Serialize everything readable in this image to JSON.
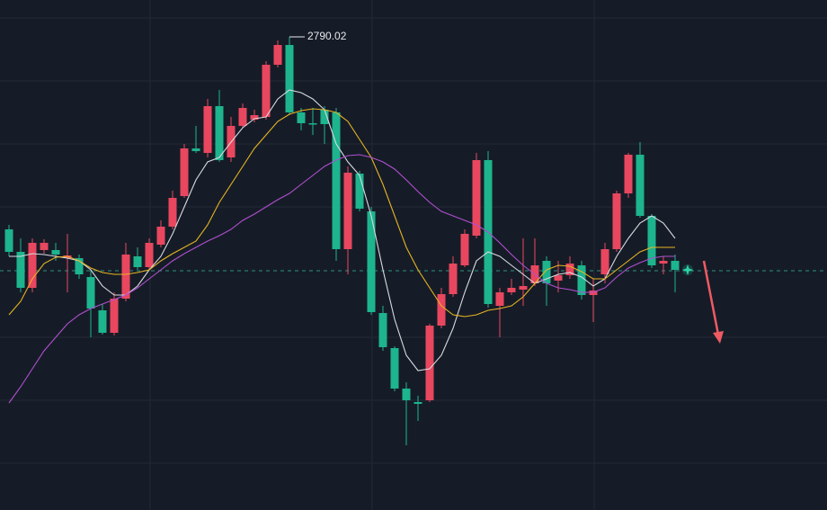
{
  "chart_data": {
    "type": "candlestick",
    "open": [
      2576,
      2551,
      2511,
      2553,
      2553,
      2544,
      2544,
      2523,
      2486,
      2461,
      2499,
      2546,
      2534,
      2559,
      2579,
      2613,
      2666,
      2661,
      2713,
      2656,
      2691,
      2698,
      2701,
      2759,
      2781,
      2706,
      2694,
      2709,
      2706,
      2554,
      2638,
      2596,
      2483,
      2444,
      2399,
      2384,
      2386,
      2469,
      2504,
      2536,
      2569,
      2653,
      2491,
      2506,
      2509,
      2516,
      2541,
      2519,
      2525,
      2536,
      2503,
      2526,
      2554,
      2616,
      2659,
      2591,
      2538,
      2541
    ],
    "high": [
      2581,
      2566,
      2566,
      2565,
      2561,
      2571,
      2548,
      2531,
      2493,
      2506,
      2561,
      2556,
      2566,
      2586,
      2619,
      2671,
      2691,
      2721,
      2731,
      2701,
      2716,
      2709,
      2763,
      2786,
      2790.02,
      2711,
      2711,
      2713,
      2711,
      2646,
      2641,
      2601,
      2491,
      2446,
      2406,
      2391,
      2471,
      2511,
      2546,
      2576,
      2661,
      2663,
      2511,
      2521,
      2566,
      2566,
      2546,
      2541,
      2546,
      2541,
      2521,
      2561,
      2619,
      2661,
      2673,
      2593,
      2546,
      2548
    ],
    "low": [
      2546,
      2506,
      2506,
      2549,
      2541,
      2506,
      2521,
      2456,
      2459,
      2458,
      2496,
      2531,
      2531,
      2556,
      2576,
      2611,
      2661,
      2656,
      2651,
      2651,
      2689,
      2695,
      2698,
      2756,
      2703,
      2686,
      2681,
      2671,
      2541,
      2526,
      2596,
      2481,
      2441,
      2396,
      2336,
      2363,
      2384,
      2466,
      2501,
      2534,
      2566,
      2489,
      2456,
      2503,
      2491,
      2513,
      2491,
      2506,
      2521,
      2498,
      2473,
      2516,
      2551,
      2611,
      2589,
      2533,
      2526,
      2506
    ],
    "close": [
      2551,
      2511,
      2561,
      2561,
      2548,
      2547,
      2526,
      2488,
      2461,
      2499,
      2548,
      2534,
      2561,
      2579,
      2611,
      2666,
      2663,
      2713,
      2653,
      2691,
      2711,
      2703,
      2759,
      2781,
      2706,
      2694,
      2693,
      2693,
      2554,
      2639,
      2599,
      2484,
      2445,
      2399,
      2386,
      2382,
      2469,
      2504,
      2538,
      2571,
      2653,
      2493,
      2506,
      2511,
      2513,
      2536,
      2516,
      2525,
      2538,
      2503,
      2508,
      2554,
      2616,
      2659,
      2591,
      2536,
      2541,
      2531
    ],
    "up_color": "#e8475f",
    "down_color": "#1db48e",
    "series": [
      {
        "color": "#d8dbe0",
        "values": [
          2546,
          2546,
          2549,
          2548,
          2546,
          2544,
          2541,
          2531,
          2513,
          2503,
          2503,
          2513,
          2531,
          2546,
          2571,
          2601,
          2631,
          2651,
          2656,
          2673,
          2689,
          2699,
          2701,
          2721,
          2731,
          2728,
          2721,
          2709,
          2671,
          2651,
          2636,
          2591,
          2531,
          2476,
          2436,
          2419,
          2421,
          2436,
          2466,
          2506,
          2541,
          2551,
          2546,
          2536,
          2526,
          2516,
          2521,
          2526,
          2528,
          2523,
          2513,
          2521,
          2546,
          2566,
          2583,
          2591,
          2583,
          2566
        ]
      },
      {
        "color": "#e6b422",
        "values": [
          2481,
          2496,
          2521,
          2538,
          2545,
          2546,
          2541,
          2533,
          2528,
          2526,
          2526,
          2528,
          2531,
          2541,
          2549,
          2556,
          2563,
          2581,
          2606,
          2626,
          2646,
          2666,
          2681,
          2696,
          2704,
          2708,
          2710,
          2709,
          2706,
          2696,
          2676,
          2656,
          2626,
          2591,
          2556,
          2531,
          2511,
          2491,
          2481,
          2479,
          2481,
          2486,
          2488,
          2491,
          2501,
          2516,
          2531,
          2536,
          2535,
          2529,
          2521,
          2521,
          2531,
          2541,
          2551,
          2556,
          2556,
          2556
        ]
      },
      {
        "color": "#b04fd0",
        "values": [
          2383,
          2401,
          2421,
          2441,
          2456,
          2471,
          2481,
          2488,
          2493,
          2498,
          2503,
          2511,
          2521,
          2531,
          2541,
          2549,
          2556,
          2563,
          2569,
          2576,
          2586,
          2593,
          2601,
          2609,
          2616,
          2626,
          2636,
          2646,
          2653,
          2658,
          2659,
          2656,
          2651,
          2643,
          2631,
          2618,
          2606,
          2596,
          2591,
          2586,
          2581,
          2573,
          2561,
          2548,
          2536,
          2526,
          2516,
          2511,
          2509,
          2506,
          2506,
          2511,
          2523,
          2533,
          2539,
          2544,
          2546,
          2546
        ]
      }
    ],
    "reference_line": 2530,
    "ylim": [
      2264,
      2831
    ]
  }
}
